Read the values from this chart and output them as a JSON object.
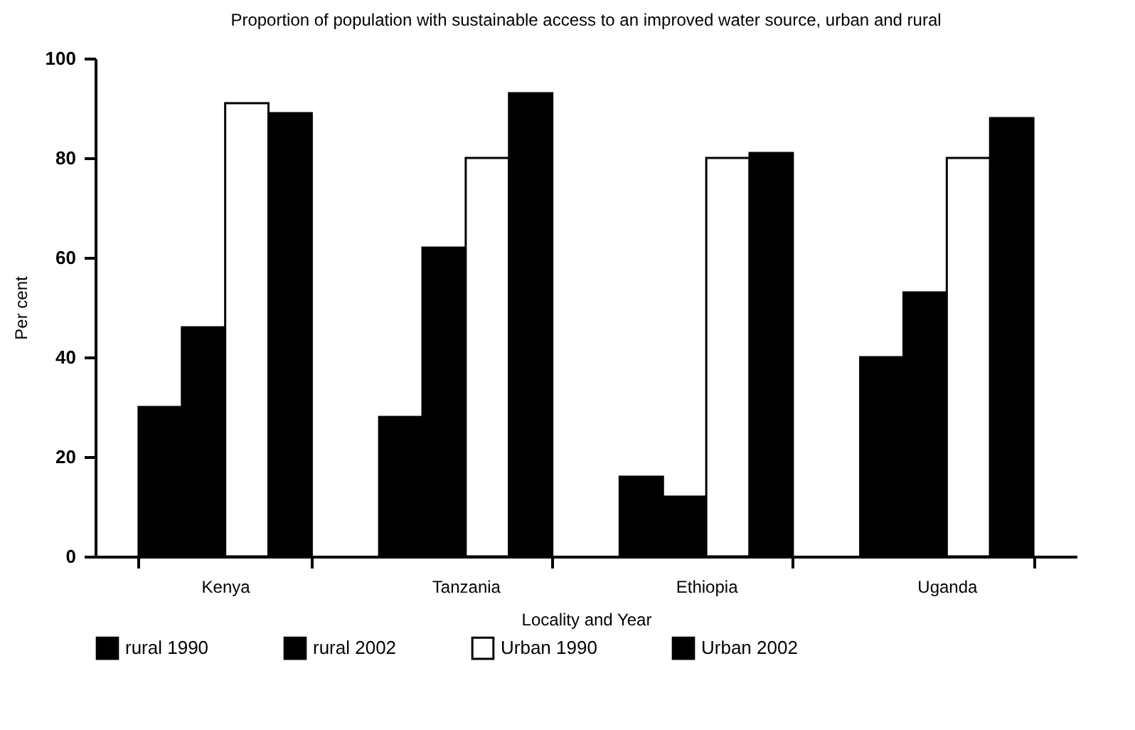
{
  "chart_data": {
    "type": "bar",
    "title": "Proportion of population with sustainable access to\nan improved water source, urban and rural",
    "xlabel": "Locality and Year",
    "ylabel": "Per cent",
    "categories": [
      "Kenya",
      "Tanzania",
      "Ethiopia",
      "Uganda"
    ],
    "series": [
      {
        "name": "rural 1990",
        "color": "#000000",
        "values": [
          30,
          28,
          16,
          40
        ]
      },
      {
        "name": "rural 2002",
        "color": "#000000",
        "values": [
          46,
          62,
          12,
          53
        ]
      },
      {
        "name": "Urban 1990",
        "color": "#ffffff",
        "values": [
          91,
          80,
          80,
          80
        ]
      },
      {
        "name": "Urban 2002",
        "color": "#000000",
        "values": [
          89,
          93,
          81,
          88
        ]
      }
    ],
    "ylim": [
      0,
      100
    ],
    "yticks": [
      0,
      20,
      40,
      60,
      80,
      100
    ],
    "grid": false,
    "legend": "bottom"
  }
}
